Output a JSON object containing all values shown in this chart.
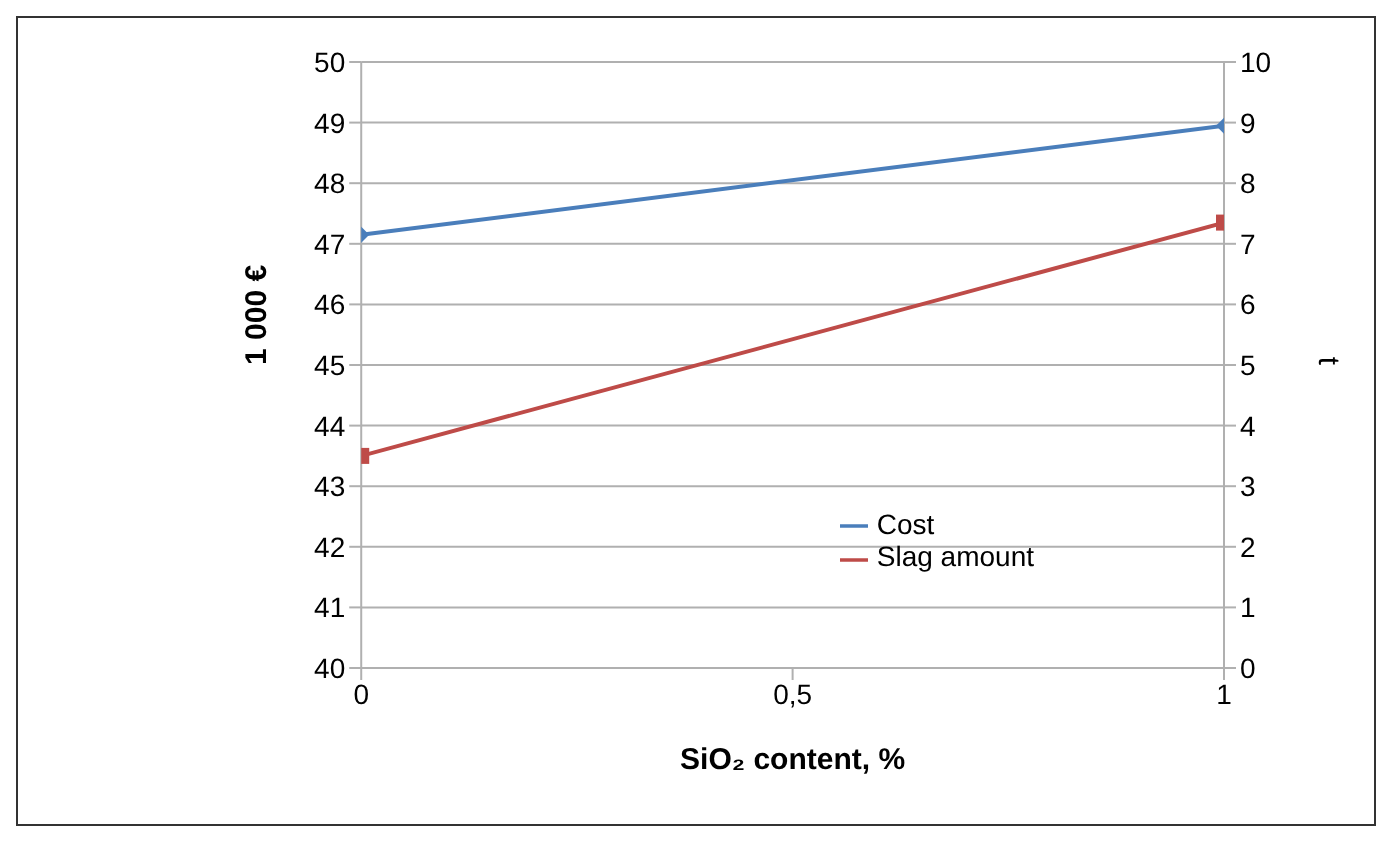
{
  "chart_data": {
    "type": "line",
    "xlabel": "SiO₂ content, %",
    "ylabel": "1 000 €",
    "y2label": "t",
    "x": [
      0,
      1
    ],
    "xlim": [
      0,
      1
    ],
    "xticks": [
      0,
      {
        "value": 0.5,
        "label": "0,5"
      },
      1
    ],
    "ylim": [
      40,
      50
    ],
    "yticks": [
      40,
      41,
      42,
      43,
      44,
      45,
      46,
      47,
      48,
      49,
      50
    ],
    "y2lim": [
      0,
      10
    ],
    "y2ticks": [
      0,
      1,
      2,
      3,
      4,
      5,
      6,
      7,
      8,
      9,
      10
    ],
    "grid": "y",
    "legend": "right",
    "line_style": "solid",
    "series": [
      {
        "name": "Cost",
        "color": "#4a7ebb",
        "values": [
          47.15,
          48.95
        ],
        "marker": "diamond"
      },
      {
        "name": "Slag amount",
        "color": "#be4b48",
        "values": [
          3.5,
          7.35
        ],
        "axis": "y2",
        "marker": "square"
      }
    ]
  }
}
